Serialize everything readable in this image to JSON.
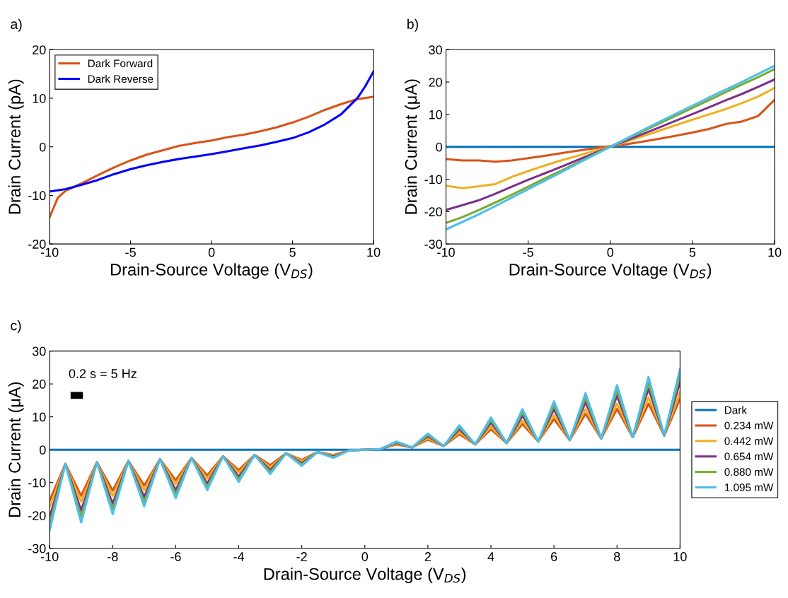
{
  "chart_data": [
    {
      "type": "line",
      "title": "a)",
      "xlabel": "Drain-Source Voltage (V$_{DS}$)",
      "ylabel": "Drain Current (pA)",
      "xlim": [
        -10,
        10
      ],
      "ylim": [
        -20,
        20
      ],
      "xticks": [
        -10,
        -5,
        0,
        5,
        10
      ],
      "yticks": [
        -20,
        -10,
        0,
        10,
        20
      ],
      "grid": false,
      "legend": "top left",
      "line_style": "solid",
      "marker": "none",
      "series": [
        {
          "name": "Dark Forward",
          "color": "#d95319",
          "x": [
            -10,
            -9.5,
            -9,
            -8,
            -7,
            -6,
            -5,
            -4,
            -3,
            -2,
            -1,
            0,
            1,
            2,
            3,
            4,
            5,
            6,
            7,
            8,
            9,
            10
          ],
          "values": [
            -14.5,
            -10.5,
            -9,
            -7.5,
            -5.8,
            -4.2,
            -2.8,
            -1.6,
            -0.7,
            0.2,
            0.8,
            1.3,
            2,
            2.5,
            3.2,
            4,
            5,
            6.2,
            7.6,
            8.8,
            9.8,
            10.3
          ]
        },
        {
          "name": "Dark Reverse",
          "color": "#0000ff",
          "x": [
            -10,
            -9,
            -8,
            -7,
            -6,
            -5,
            -4,
            -3,
            -2,
            -1,
            0,
            1,
            2,
            3,
            4,
            5,
            6,
            7,
            8,
            9,
            9.5,
            10
          ],
          "values": [
            -9.2,
            -8.7,
            -7.8,
            -6.8,
            -5.6,
            -4.6,
            -3.8,
            -3.1,
            -2.5,
            -2,
            -1.5,
            -0.9,
            -0.3,
            0.3,
            1,
            1.8,
            3,
            4.6,
            6.7,
            10,
            12.5,
            15.5
          ]
        }
      ]
    },
    {
      "type": "line",
      "title": "b)",
      "xlabel": "Drain-Source Voltage (V$_{DS}$)",
      "ylabel": "Drain Current (μA)",
      "xlim": [
        -10,
        10
      ],
      "ylim": [
        -30,
        30
      ],
      "xticks": [
        -10,
        -5,
        0,
        5,
        10
      ],
      "yticks": [
        -30,
        -20,
        -10,
        0,
        10,
        20,
        30
      ],
      "grid": false,
      "line_style": "solid",
      "marker": "none",
      "x": [
        -10,
        -9,
        -8,
        -7,
        -6,
        -5,
        -4,
        -3,
        -2,
        -1,
        0,
        1,
        2,
        3,
        4,
        5,
        6,
        7,
        8,
        9,
        10
      ],
      "series": [
        {
          "color": "#0072bd",
          "values": [
            0,
            0,
            0,
            0,
            0,
            0,
            0,
            0,
            0,
            0,
            0,
            0,
            0,
            0,
            0,
            0,
            0,
            0,
            0,
            0,
            0
          ]
        },
        {
          "color": "#d95319",
          "x": [
            -10,
            -9,
            -8,
            -7,
            -6,
            -5,
            -4,
            -3,
            -2,
            -1,
            0,
            1,
            2,
            3,
            4,
            5,
            6,
            7,
            8,
            9,
            9.5,
            10
          ],
          "values": [
            -3.8,
            -4.2,
            -4.2,
            -4.6,
            -4.2,
            -3.5,
            -2.8,
            -2,
            -1.2,
            -0.5,
            0.2,
            0.8,
            1.6,
            2.5,
            3.4,
            4.4,
            5.5,
            7,
            7.8,
            9.5,
            12,
            14.5
          ]
        },
        {
          "color": "#edb120",
          "values": [
            -12,
            -12.8,
            -12.2,
            -11.5,
            -9.3,
            -7.5,
            -5.8,
            -4.2,
            -2.8,
            -1.3,
            0,
            1.6,
            3.3,
            5,
            6.7,
            8.4,
            10,
            11.6,
            13.5,
            15.5,
            18.2
          ]
        },
        {
          "color": "#7e2f8e",
          "values": [
            -19.5,
            -18,
            -16.5,
            -14.5,
            -12.3,
            -10.2,
            -8.2,
            -6.2,
            -4.1,
            -2,
            0,
            2,
            4,
            6,
            8.1,
            10.1,
            12.2,
            14.3,
            16.3,
            18.5,
            20.8
          ]
        },
        {
          "color": "#77ac30",
          "values": [
            -23.5,
            -21.7,
            -19.5,
            -17.2,
            -14.8,
            -12.3,
            -9.8,
            -7.4,
            -4.9,
            -2.4,
            0,
            2.4,
            4.8,
            7.2,
            9.6,
            12,
            14.4,
            16.8,
            19.2,
            21.5,
            24
          ]
        },
        {
          "color": "#4dbeee",
          "values": [
            -25.5,
            -23.2,
            -20.8,
            -18.3,
            -15.7,
            -13.1,
            -10.5,
            -7.9,
            -5.2,
            -2.6,
            0,
            2.6,
            5.2,
            7.7,
            10.2,
            12.7,
            15.2,
            17.6,
            20,
            22.5,
            25
          ]
        }
      ]
    },
    {
      "type": "line",
      "title": "c)",
      "xlabel": "Drain-Source Voltage (V$_{DS}$)",
      "ylabel": "Drain Current (μA)",
      "xlim": [
        -10,
        10
      ],
      "ylim": [
        -30,
        30
      ],
      "xticks": [
        -10,
        -8,
        -6,
        -4,
        -2,
        0,
        2,
        4,
        6,
        8,
        10
      ],
      "yticks": [
        -30,
        -20,
        -10,
        0,
        10,
        20,
        30
      ],
      "grid": false,
      "legend": "right",
      "line_style": "solid",
      "marker": "none",
      "annotations": [
        "0.2 s = 5 Hz"
      ],
      "x": [
        -10,
        -9.5,
        -9,
        -8.5,
        -8,
        -7.5,
        -7,
        -6.5,
        -6,
        -5.5,
        -5,
        -4.5,
        -4,
        -3.5,
        -3,
        -2.5,
        -2,
        -1.5,
        -1,
        -0.5,
        0,
        0.5,
        1,
        1.5,
        2,
        2.5,
        3,
        3.5,
        4,
        4.5,
        5,
        5.5,
        6,
        6.5,
        7,
        7.5,
        8,
        8.5,
        9,
        9.5,
        10
      ],
      "series": [
        {
          "name": "Dark",
          "color": "#0072bd",
          "x": [
            -10,
            10
          ],
          "values": [
            0,
            0
          ]
        },
        {
          "name": "0.234 mW",
          "color": "#d95319",
          "values": [
            -15.5,
            -4.3,
            -14,
            -3.8,
            -12.4,
            -3.4,
            -10.9,
            -2.9,
            -9.3,
            -2.5,
            -7.8,
            -2,
            -6.2,
            -1.6,
            -4.7,
            -1.1,
            -3.1,
            -0.7,
            -1.6,
            -0.2,
            0,
            0.2,
            1.6,
            0.7,
            3.1,
            1.1,
            4.7,
            1.6,
            6.2,
            2,
            7.8,
            2.5,
            9.3,
            2.9,
            10.9,
            3.4,
            12.4,
            3.8,
            14,
            4.3,
            15.5
          ]
        },
        {
          "name": "0.442 mW",
          "color": "#edb120",
          "values": [
            -17.5,
            -4.3,
            -15.8,
            -3.8,
            -14,
            -3.4,
            -12.3,
            -2.9,
            -10.5,
            -2.5,
            -8.8,
            -2,
            -7,
            -1.6,
            -5.3,
            -1.1,
            -3.5,
            -0.7,
            -1.8,
            -0.2,
            0,
            0.2,
            1.8,
            0.7,
            3.5,
            1.1,
            5.3,
            1.6,
            7,
            2,
            8.8,
            2.5,
            10.5,
            2.9,
            12.3,
            3.4,
            14,
            3.8,
            15.8,
            4.3,
            17.5
          ]
        },
        {
          "name": "0.654 mW",
          "color": "#7e2f8e",
          "values": [
            -20.5,
            -4.3,
            -18.5,
            -3.8,
            -16.4,
            -3.4,
            -14.4,
            -2.9,
            -12.3,
            -2.5,
            -10.3,
            -2,
            -8.2,
            -1.6,
            -6.2,
            -1.1,
            -4.1,
            -0.7,
            -2.1,
            -0.2,
            0,
            0.2,
            2.1,
            0.7,
            4.1,
            1.1,
            6.2,
            1.6,
            8.2,
            2,
            10.3,
            2.5,
            12.3,
            2.9,
            14.4,
            3.4,
            16.4,
            3.8,
            18.5,
            4.3,
            20.5
          ]
        },
        {
          "name": "0.880 mW",
          "color": "#77ac30",
          "values": [
            -22.5,
            -4.3,
            -20.3,
            -3.8,
            -18,
            -3.4,
            -15.8,
            -2.9,
            -13.5,
            -2.5,
            -11.3,
            -2,
            -9,
            -1.6,
            -6.8,
            -1.1,
            -4.5,
            -0.7,
            -2.3,
            -0.2,
            0,
            0.2,
            2.3,
            0.7,
            4.5,
            1.1,
            6.8,
            1.6,
            9,
            2,
            11.3,
            2.5,
            13.5,
            2.9,
            15.8,
            3.4,
            18,
            3.8,
            20.3,
            4.3,
            22.5
          ]
        },
        {
          "name": "1.095 mW",
          "color": "#4dbeee",
          "values": [
            -24.5,
            -4.3,
            -22.1,
            -3.8,
            -19.6,
            -3.4,
            -17.2,
            -2.9,
            -14.7,
            -2.5,
            -12.3,
            -2,
            -9.8,
            -1.6,
            -7.4,
            -1.1,
            -4.9,
            -0.7,
            -2.5,
            -0.2,
            0,
            0.2,
            2.5,
            0.7,
            4.9,
            1.1,
            7.4,
            1.6,
            9.8,
            2,
            12.3,
            2.5,
            14.7,
            2.9,
            17.2,
            3.4,
            19.6,
            3.8,
            22.1,
            4.3,
            24.5
          ]
        }
      ]
    }
  ]
}
